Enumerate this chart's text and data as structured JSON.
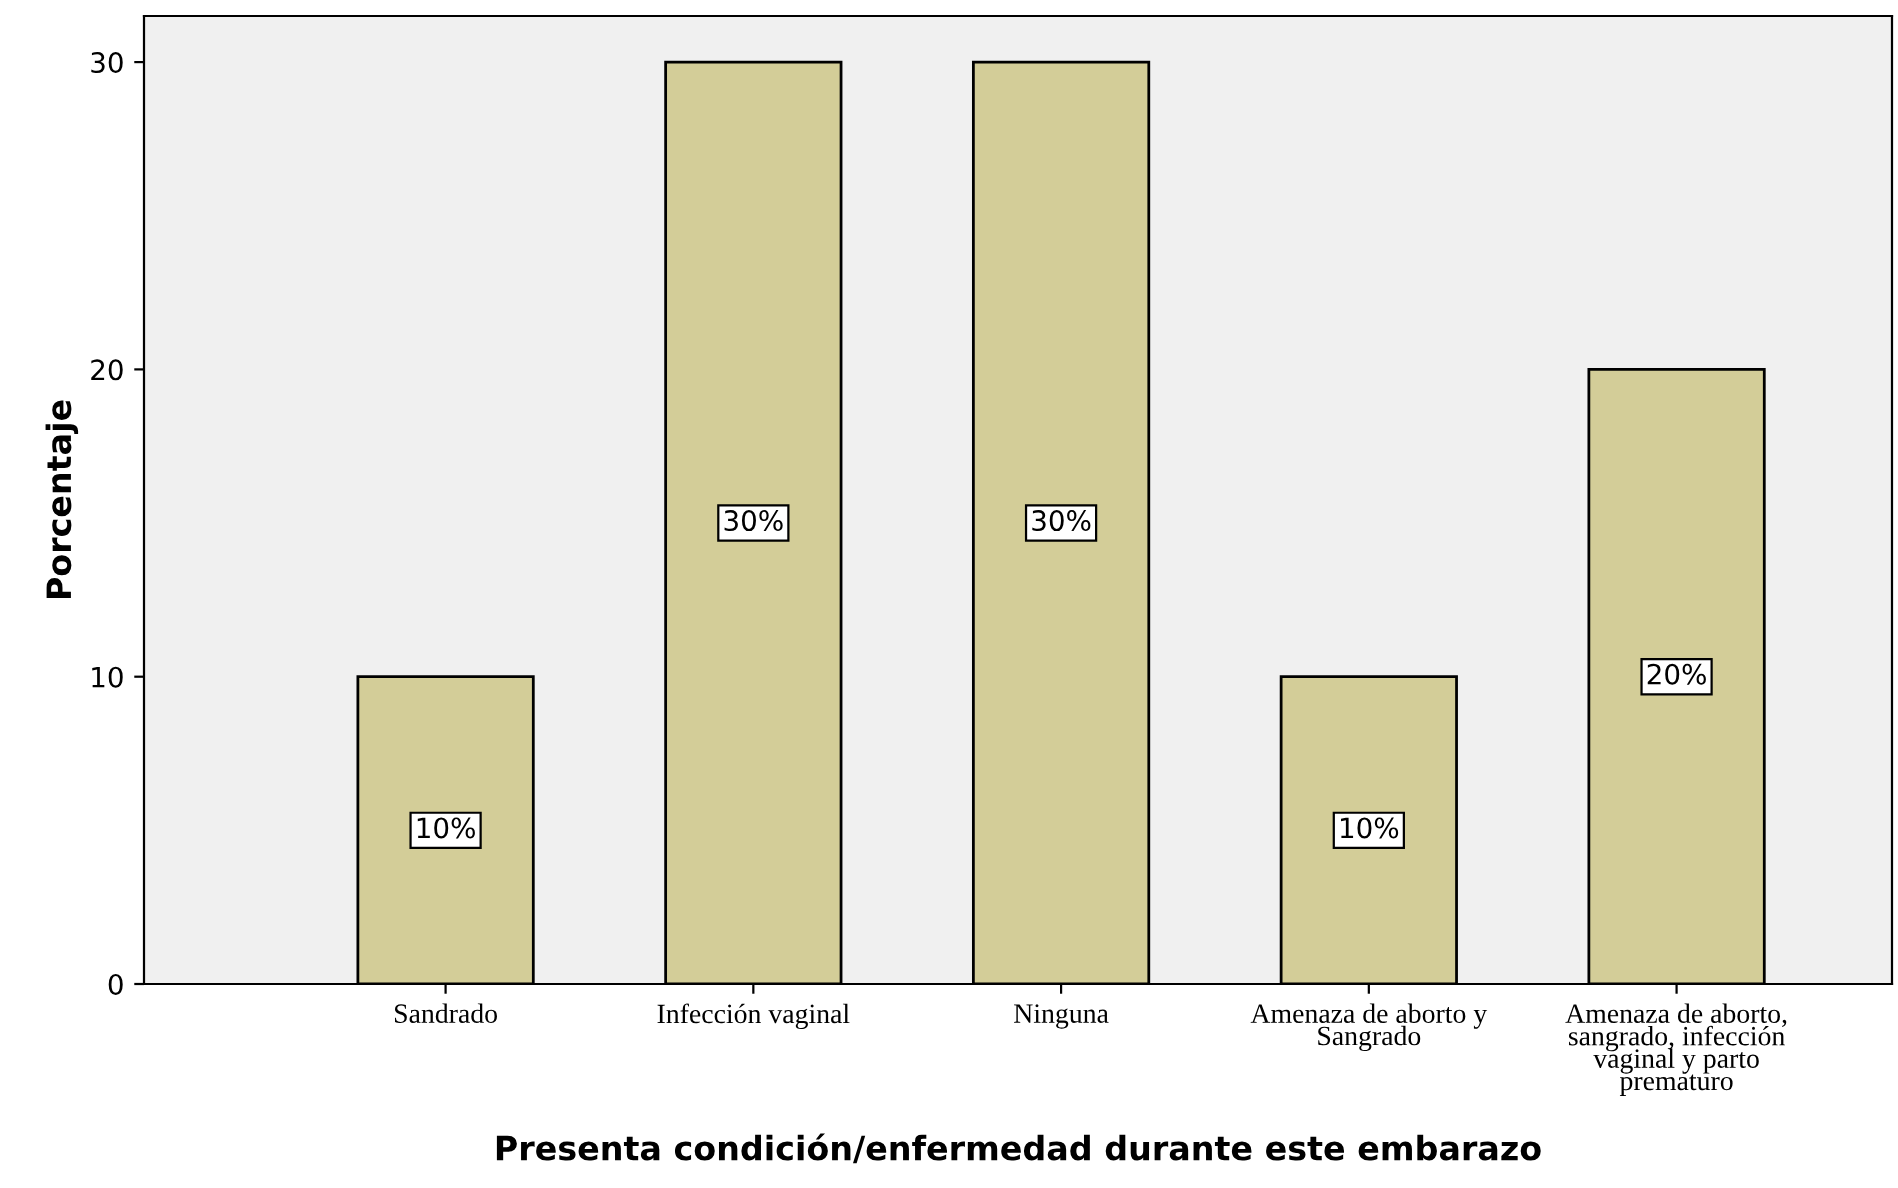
{
  "chart_data": {
    "type": "bar",
    "xlabel": "Presenta condición/enfermedad durante este embarazo",
    "ylabel": "Porcentaje",
    "categories": [
      "Sandrado",
      "Infección vaginal",
      "Ninguna",
      "Amenaza de aborto y\nSangrado",
      "Amenaza de aborto,\nsangrado, infección\nvaginal y parto\nprematuro"
    ],
    "values": [
      10,
      30,
      30,
      10,
      20
    ],
    "value_labels": [
      "10%",
      "30%",
      "30%",
      "10%",
      "20%"
    ],
    "color": "#d3cd98",
    "ylim": [
      0,
      31.5
    ],
    "yticks": [
      0,
      10,
      20,
      30
    ],
    "grid": false,
    "legend": false
  }
}
